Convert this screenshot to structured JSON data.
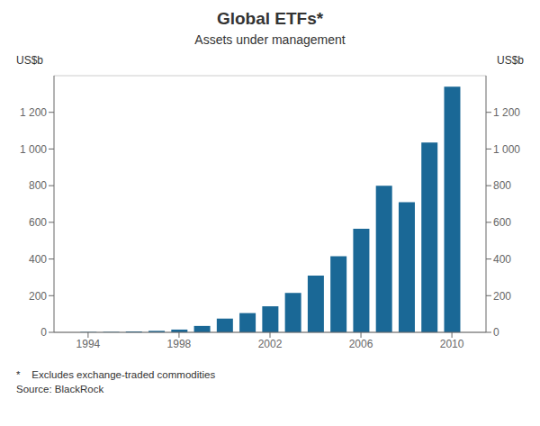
{
  "chart_data": {
    "type": "bar",
    "title": "Global ETFs*",
    "subtitle": "Assets under management",
    "ylabel": "US$b",
    "y2label": "US$b",
    "footnote": "*    Excludes exchange-traded commodities",
    "source": "Source: BlackRock",
    "x": [
      1993,
      1994,
      1995,
      1996,
      1997,
      1998,
      1999,
      2000,
      2001,
      2002,
      2003,
      2004,
      2005,
      2006,
      2007,
      2008,
      2009,
      2010
    ],
    "values": [
      0,
      2,
      2,
      5,
      8,
      15,
      35,
      75,
      105,
      142,
      215,
      310,
      415,
      565,
      800,
      710,
      1035,
      1340
    ],
    "color": "#1a6896",
    "xlim": [
      1992.5,
      2011.5
    ],
    "xticks": [
      1994,
      1998,
      2002,
      2006,
      2010
    ],
    "ylim": [
      0,
      1400
    ],
    "yticks": [
      0,
      200,
      400,
      600,
      800,
      {
        "value": 1000,
        "label": "1 000"
      },
      {
        "value": 1200,
        "label": "1 200"
      }
    ],
    "y2lim": [
      0,
      1400
    ],
    "y2ticks": [
      0,
      200,
      400,
      600,
      800,
      {
        "value": 1000,
        "label": "1 000"
      },
      {
        "value": 1200,
        "label": "1 200"
      }
    ],
    "grid": true
  }
}
